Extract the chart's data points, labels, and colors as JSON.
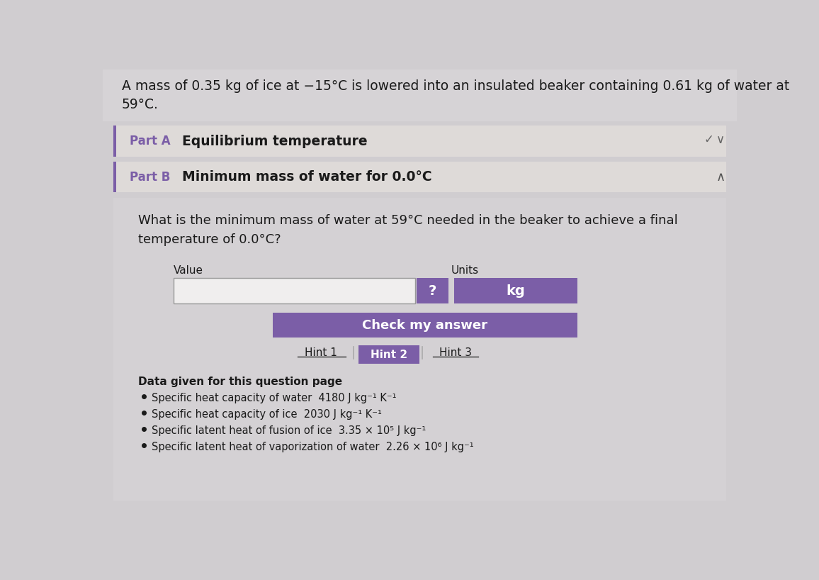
{
  "bg_color": "#d0cdd0",
  "intro_text_line1": "A mass of 0.35 kg of ice at −15°C is lowered into an insulated beaker containing 0.61 kg of water at",
  "intro_text_line2": "59°C.",
  "part_a_label": "Part A",
  "part_a_title": "Equilibrium temperature",
  "part_b_label": "Part B",
  "part_b_title": "Minimum mass of water for 0.0°C",
  "question_text_line1": "What is the minimum mass of water at 59°C needed in the beaker to achieve a final",
  "question_text_line2": "temperature of 0.0°C?",
  "value_label": "Value",
  "units_label": "Units",
  "question_mark": "?",
  "units_value": "kg",
  "check_btn_text": "Check my answer",
  "hint1_text": "Hint 1",
  "hint2_text": "Hint 2",
  "hint3_text": "Hint 3",
  "data_section_title": "Data given for this question page",
  "data_bullets": [
    "Specific heat capacity of water  4180 J kg⁻¹ K⁻¹",
    "Specific heat capacity of ice  2030 J kg⁻¹ K⁻¹",
    "Specific latent heat of fusion of ice  3.35 × 10⁵ J kg⁻¹",
    "Specific latent heat of vaporization of water  2.26 × 10⁶ J kg⁻¹"
  ],
  "purple_color": "#7B5EA7",
  "check_btn_color": "#7B5EA7",
  "hint2_btn_color": "#7B5EA7",
  "text_color_dark": "#1a1a1a",
  "text_color_gray": "#555555",
  "part_panel_bg": "#dedad8",
  "content_bg": "#d4d1d4",
  "input_box_bg": "#f0eeee",
  "input_box_border": "#999999",
  "top_bg": "#d6d3d6"
}
